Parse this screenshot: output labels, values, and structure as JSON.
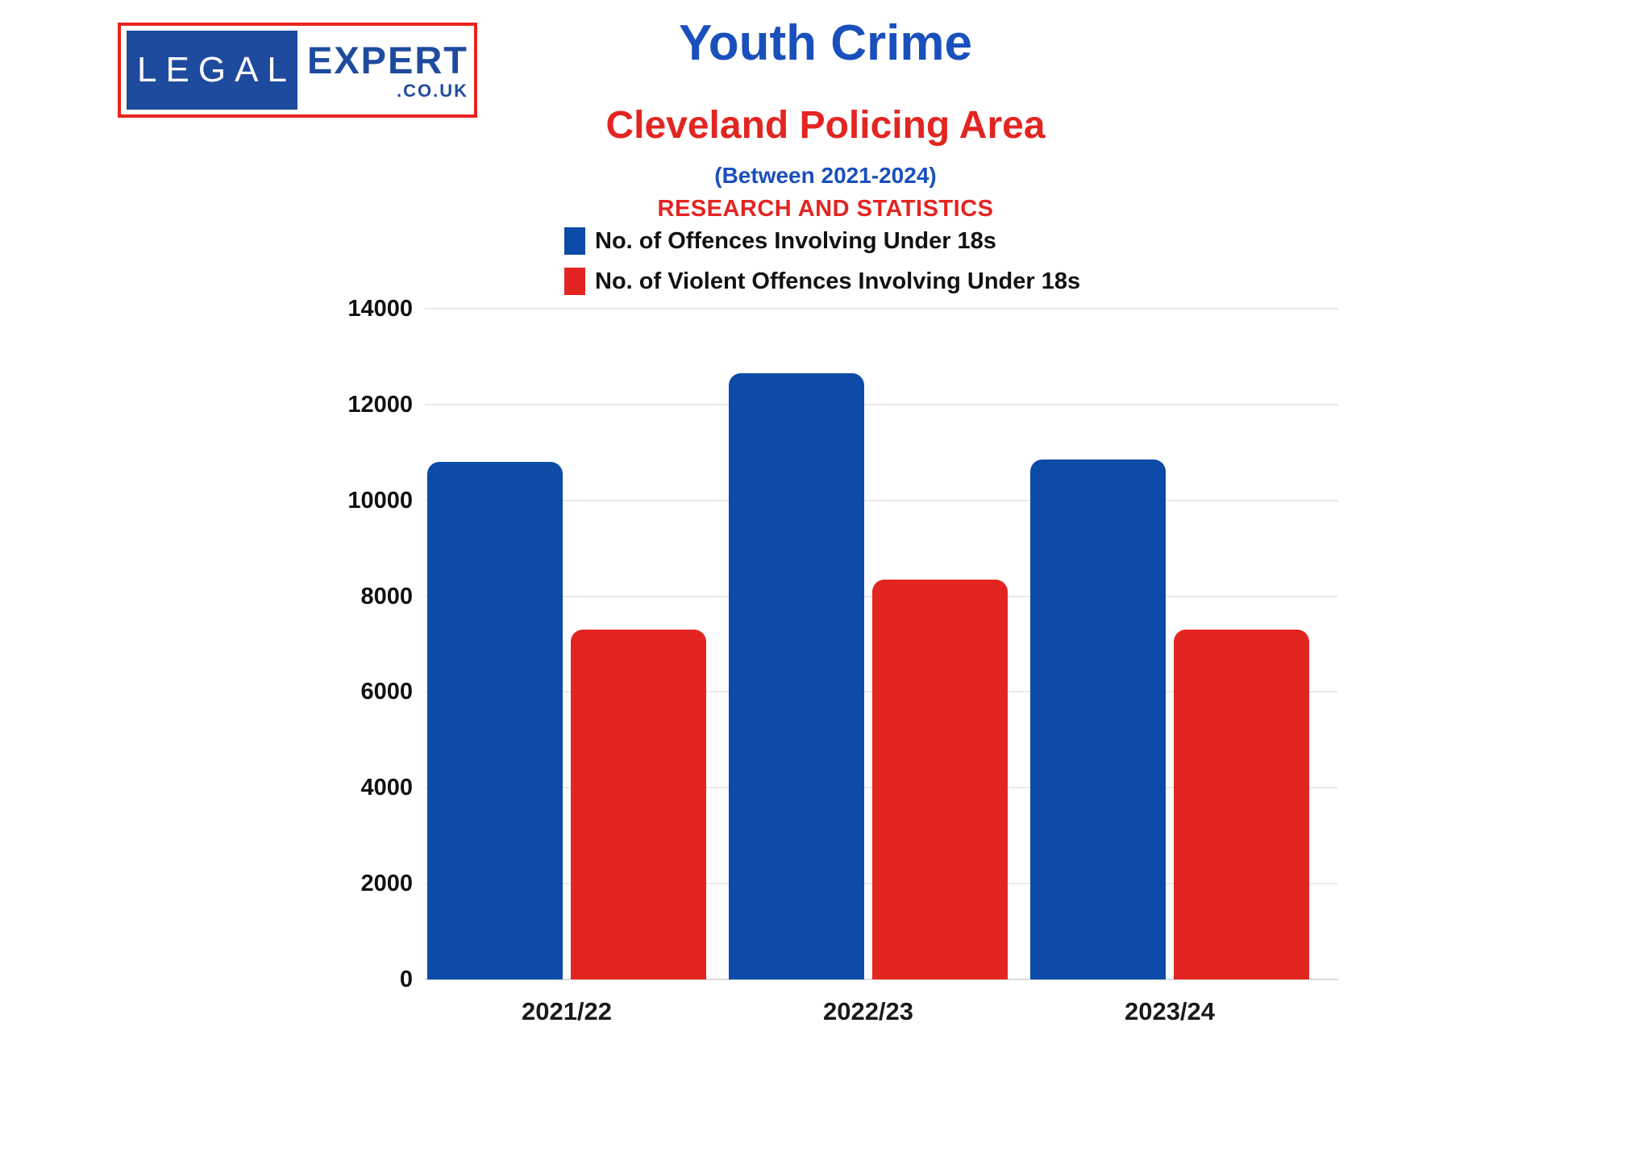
{
  "logo": {
    "legal": "LEGAL",
    "expert": "EXPERT",
    "domain": ".CO.UK"
  },
  "header": {
    "title": "Youth Crime",
    "subtitle": "Cleveland Policing Area",
    "period": "(Between 2021-2024)",
    "tagline": "RESEARCH AND STATISTICS"
  },
  "colors": {
    "bar_blue": "#0C4BA8",
    "bar_red": "#E32522",
    "title_blue": "#1950BC",
    "subtitle_red": "#E32522",
    "logo_blue": "#1F4B9E",
    "logo_border_red": "#E8241F",
    "axis_text": "#111111",
    "gridline": "#EAEAEA"
  },
  "chart_data": {
    "type": "bar",
    "title": "Youth Crime",
    "subtitle": "Cleveland Policing Area (Between 2021-2024)",
    "categories": [
      "2021/22",
      "2022/23",
      "2023/24"
    ],
    "series": [
      {
        "name": "No. of Offences Involving Under 18s",
        "color": "#0C4BA8",
        "values": [
          10800,
          12650,
          10850
        ]
      },
      {
        "name": "No. of Violent Offences Involving Under 18s",
        "color": "#E32522",
        "values": [
          7300,
          8350,
          7300
        ]
      }
    ],
    "ylim": [
      0,
      14000
    ],
    "ytick_step": 2000,
    "yticks": [
      0,
      2000,
      4000,
      6000,
      8000,
      10000,
      12000,
      14000
    ],
    "grid": "horizontal",
    "legend_position": "top"
  }
}
